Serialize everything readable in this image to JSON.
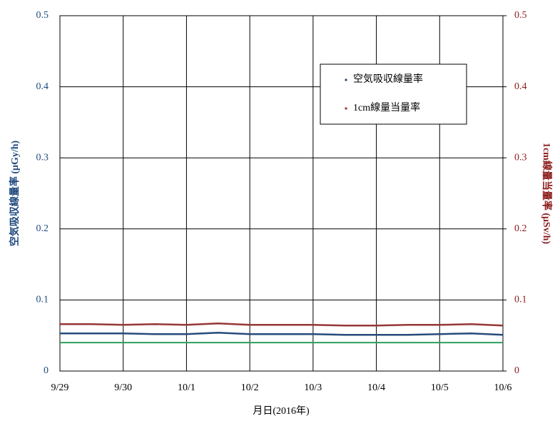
{
  "chart_data": {
    "type": "line",
    "x_label": "月日(2016年)",
    "y_label": "空気吸収線量率 (μGy/h)",
    "y2_label": "1cm線量当量率 (μSv/h)",
    "categories": [
      "9/29",
      null,
      "9/30",
      null,
      "10/1",
      null,
      "10/2",
      null,
      "10/3",
      null,
      "10/4",
      null,
      "10/5",
      null,
      "10/6"
    ],
    "series": [
      {
        "name": "空気吸収線量率",
        "color": "#254b7c",
        "values": [
          0.053,
          0.053,
          0.053,
          0.052,
          0.052,
          0.054,
          0.052,
          0.052,
          0.052,
          0.051,
          0.051,
          0.051,
          0.052,
          0.053,
          0.051
        ]
      },
      {
        "name": "1cm線量当量率",
        "color": "#953735",
        "axis": "y2",
        "values": [
          0.066,
          0.066,
          0.065,
          0.066,
          0.065,
          0.067,
          0.065,
          0.065,
          0.065,
          0.064,
          0.064,
          0.065,
          0.065,
          0.066,
          0.064
        ]
      }
    ],
    "hlines": [
      {
        "value": 0.04,
        "color": "#2ca05a"
      }
    ],
    "ylim": [
      0,
      0.5
    ],
    "yticks": [
      0,
      0.1,
      0.2,
      0.3,
      0.4,
      0.5
    ],
    "y2lim": [
      0,
      0.5
    ],
    "y2ticks": [
      0,
      0.1,
      0.2,
      0.3,
      0.4,
      0.5
    ],
    "y_color": "#1f497d",
    "y2_color": "#8b1a1a",
    "grid": true,
    "legend": "upper-right"
  }
}
